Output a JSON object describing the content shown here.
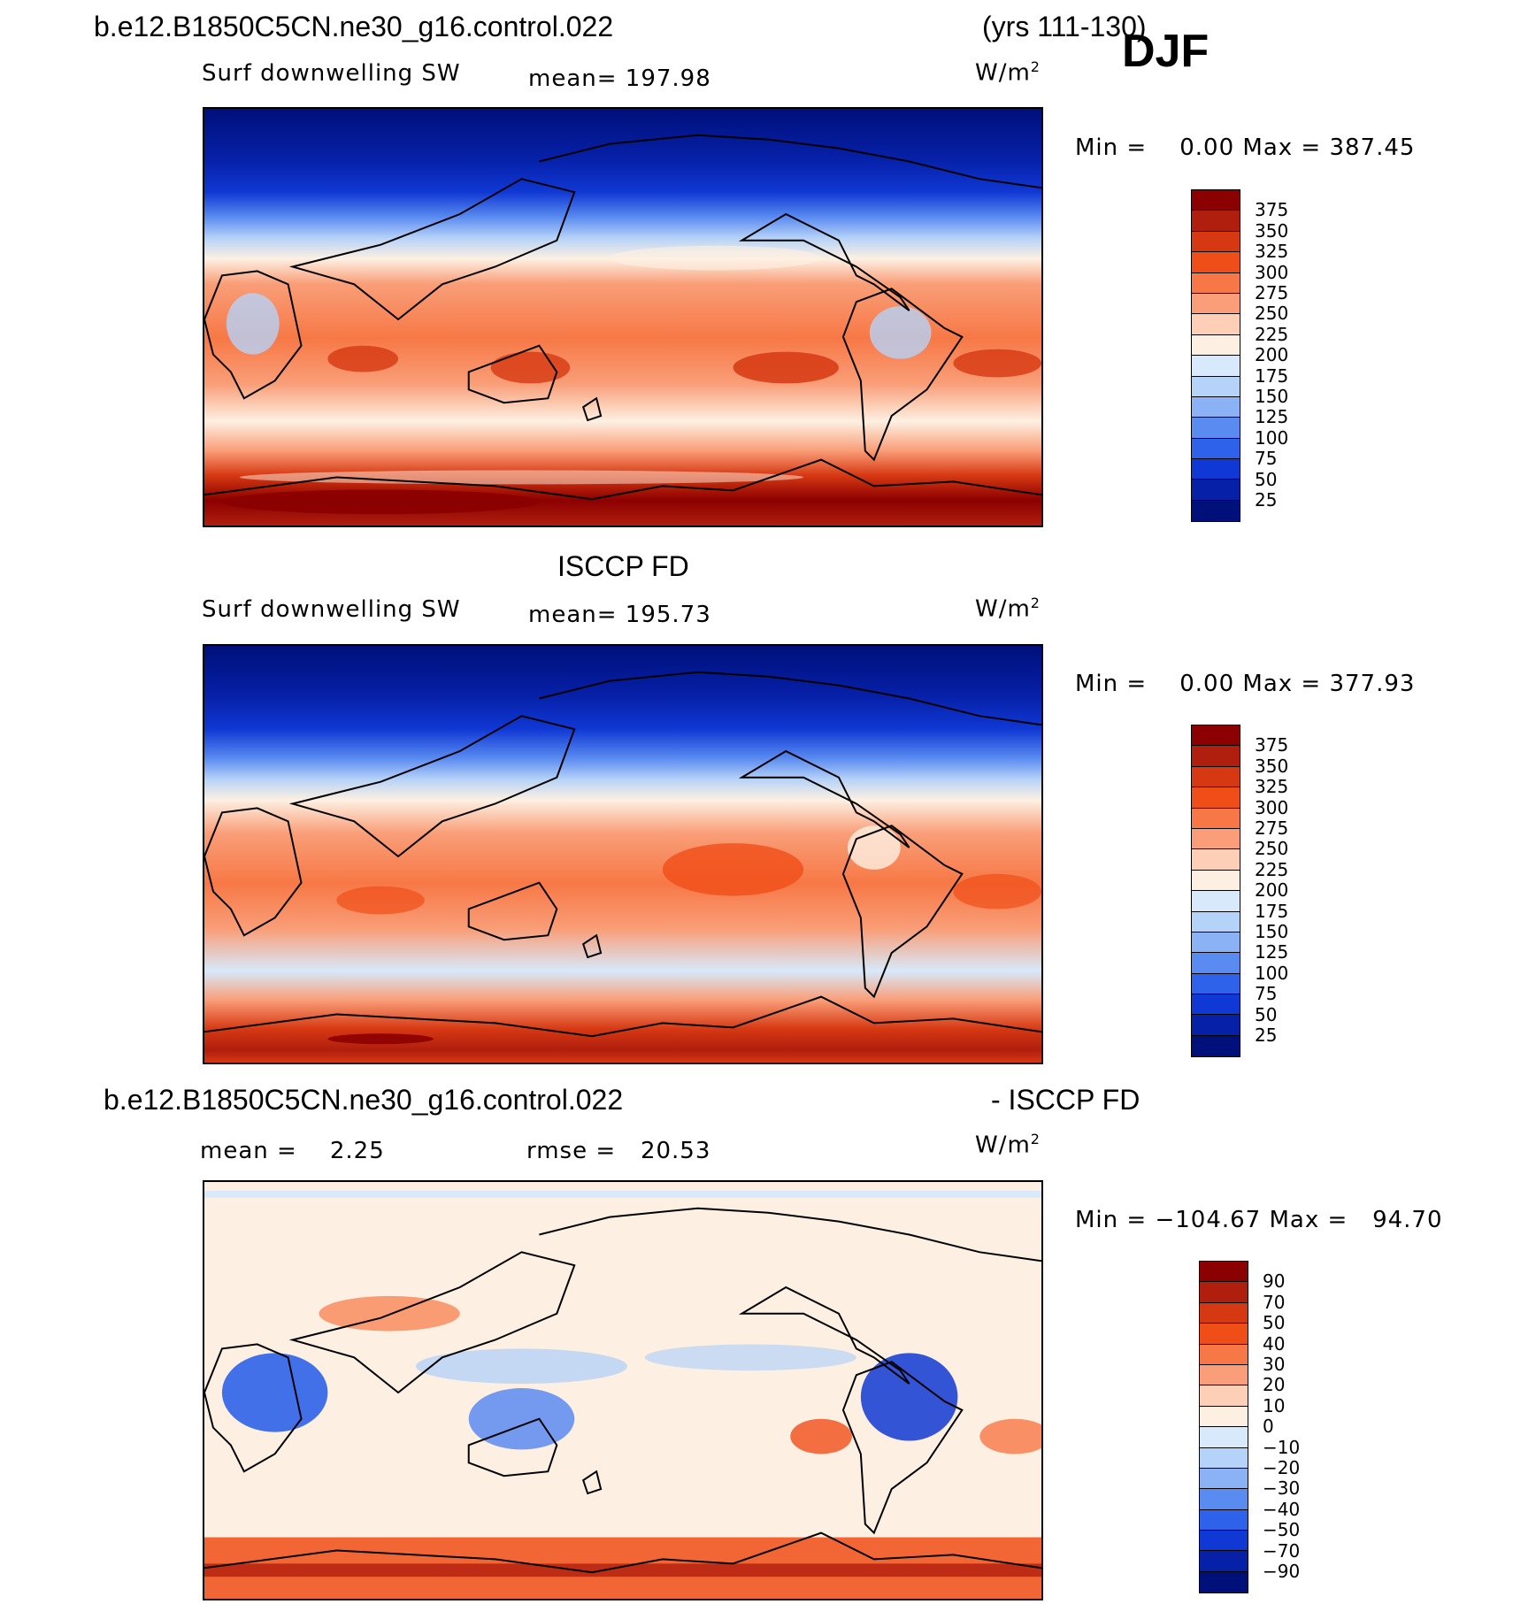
{
  "header": {
    "case_name": "b.e12.B1850C5CN.ne30_g16.control.022",
    "years": "(yrs 111-130)",
    "season": "DJF"
  },
  "panels": [
    {
      "title": "",
      "variable": "Surf downwelling SW",
      "mean_text": "mean= 197.98",
      "unit": "W/m",
      "unit_exp": "2",
      "minmax_text": "Min =    0.00 Max = 387.45",
      "colorbar": {
        "labels": [
          "375",
          "350",
          "325",
          "300",
          "275",
          "250",
          "225",
          "200",
          "175",
          "150",
          "125",
          "100",
          "75",
          "50",
          "25"
        ],
        "colors": [
          "#8b0000",
          "#b01e0e",
          "#d63812",
          "#f04e18",
          "#f77846",
          "#f99e78",
          "#fccfb6",
          "#fdf0e2",
          "#d7e9fb",
          "#b5d2f8",
          "#8ab2f4",
          "#5a8bf0",
          "#2e62ea",
          "#1038d4",
          "#0620a8",
          "#00107a"
        ]
      }
    },
    {
      "title": "ISCCP FD",
      "variable": "Surf downwelling SW",
      "mean_text": "mean= 195.73",
      "unit": "W/m",
      "unit_exp": "2",
      "minmax_text": "Min =    0.00 Max = 377.93",
      "colorbar": {
        "labels": [
          "375",
          "350",
          "325",
          "300",
          "275",
          "250",
          "225",
          "200",
          "175",
          "150",
          "125",
          "100",
          "75",
          "50",
          "25"
        ],
        "colors": [
          "#8b0000",
          "#b01e0e",
          "#d63812",
          "#f04e18",
          "#f77846",
          "#f99e78",
          "#fccfb6",
          "#fdf0e2",
          "#d7e9fb",
          "#b5d2f8",
          "#8ab2f4",
          "#5a8bf0",
          "#2e62ea",
          "#1038d4",
          "#0620a8",
          "#00107a"
        ]
      }
    },
    {
      "title_left": "b.e12.B1850C5CN.ne30_g16.control.022",
      "title_right": "- ISCCP FD",
      "mean_text": "mean =    2.25",
      "rmse_text": "rmse =   20.53",
      "unit": "W/m",
      "unit_exp": "2",
      "minmax_text": "Min = −104.67 Max =   94.70",
      "colorbar": {
        "labels": [
          "90",
          "70",
          "50",
          "40",
          "30",
          "20",
          "10",
          "0",
          "−10",
          "−20",
          "−30",
          "−40",
          "−50",
          "−70",
          "−90"
        ],
        "colors": [
          "#8b0000",
          "#b01e0e",
          "#d63812",
          "#f04e18",
          "#f77846",
          "#f99e78",
          "#fccfb6",
          "#fdf0e2",
          "#d7e9fb",
          "#b5d2f8",
          "#8ab2f4",
          "#5a8bf0",
          "#2e62ea",
          "#1038d4",
          "#0620a8",
          "#00107a"
        ]
      }
    }
  ]
}
